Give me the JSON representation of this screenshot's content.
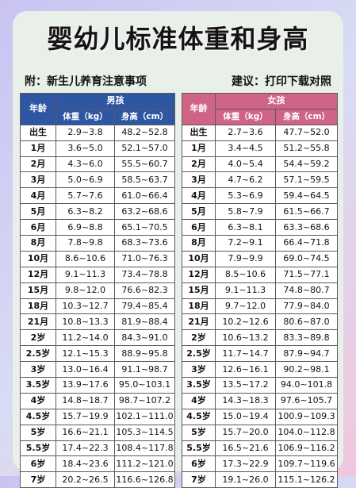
{
  "header": {
    "title": "婴幼儿标准体重和身高",
    "subtitle_left": "附：新生儿养育注意事项",
    "subtitle_right": "建议：打印下载对照"
  },
  "columns": {
    "age": "年龄",
    "weight": "体重（kg）",
    "height": "身高（cm）"
  },
  "boys": {
    "label": "男孩",
    "rows": [
      [
        "出生",
        "2.9~3.8",
        "48.2~52.8"
      ],
      [
        "1月",
        "3.6~5.0",
        "52.1~57.0"
      ],
      [
        "2月",
        "4.3~6.0",
        "55.5~60.7"
      ],
      [
        "3月",
        "5.0~6.9",
        "58.5~63.7"
      ],
      [
        "4月",
        "5.7~7.6",
        "61.0~66.4"
      ],
      [
        "5月",
        "6.3~8.2",
        "63.2~68.6"
      ],
      [
        "6月",
        "6.9~8.8",
        "65.1~70.5"
      ],
      [
        "8月",
        "7.8~9.8",
        "68.3~73.6"
      ],
      [
        "10月",
        "8.6~10.6",
        "71.0~76.3"
      ],
      [
        "12月",
        "9.1~11.3",
        "73.4~78.8"
      ],
      [
        "15月",
        "9.8~12.0",
        "76.6~82.3"
      ],
      [
        "18月",
        "10.3~12.7",
        "79.4~85.4"
      ],
      [
        "21月",
        "10.8~13.3",
        "81.9~88.4"
      ],
      [
        "2岁",
        "11.2~14.0",
        "84.3~91.0"
      ],
      [
        "2.5岁",
        "12.1~15.3",
        "88.9~95.8"
      ],
      [
        "3岁",
        "13.0~16.4",
        "91.1~98.7"
      ],
      [
        "3.5岁",
        "13.9~17.6",
        "95.0~103.1"
      ],
      [
        "4岁",
        "14.8~18.7",
        "98.7~107.2"
      ],
      [
        "4.5岁",
        "15.7~19.9",
        "102.1~111.0"
      ],
      [
        "5岁",
        "16.6~21.1",
        "105.3~114.5"
      ],
      [
        "5.5岁",
        "17.4~22.3",
        "108.4~117.8"
      ],
      [
        "6岁",
        "18.4~23.6",
        "111.2~121.0"
      ],
      [
        "7岁",
        "20.2~26.5",
        "116.6~126.8"
      ]
    ]
  },
  "girls": {
    "label": "女孩",
    "rows": [
      [
        "出生",
        "2.7~3.6",
        "47.7~52.0"
      ],
      [
        "1月",
        "3.4~4.5",
        "51.2~55.8"
      ],
      [
        "2月",
        "4.0~5.4",
        "54.4~59.2"
      ],
      [
        "3月",
        "4.7~6.2",
        "57.1~59.5"
      ],
      [
        "4月",
        "5.3~6.9",
        "59.4~64.5"
      ],
      [
        "5月",
        "5.8~7.9",
        "61.5~66.7"
      ],
      [
        "6月",
        "6.3~8.1",
        "63.3~68.6"
      ],
      [
        "8月",
        "7.2~9.1",
        "66.4~71.8"
      ],
      [
        "10月",
        "7.9~9.9",
        "69.0~74.5"
      ],
      [
        "12月",
        "8.5~10.6",
        "71.5~77.1"
      ],
      [
        "15月",
        "9.1~11.3",
        "74.8~80.7"
      ],
      [
        "18月",
        "9.7~12.0",
        "77.9~84.0"
      ],
      [
        "21月",
        "10.2~12.6",
        "80.6~87.0"
      ],
      [
        "2岁",
        "10.6~13.2",
        "83.3~89.8"
      ],
      [
        "2.5岁",
        "11.7~14.7",
        "87.9~94.7"
      ],
      [
        "3岁",
        "12.6~16.1",
        "90.2~98.1"
      ],
      [
        "3.5岁",
        "13.5~17.2",
        "94.0~101.8"
      ],
      [
        "4岁",
        "14.3~18.3",
        "97.6~105.7"
      ],
      [
        "4.5岁",
        "15.0~19.4",
        "100.9~109.3"
      ],
      [
        "5岁",
        "15.7~20.0",
        "104.0~112.8"
      ],
      [
        "5.5岁",
        "16.5~21.6",
        "106.9~116.2"
      ],
      [
        "6岁",
        "17.3~22.9",
        "109.7~119.6"
      ],
      [
        "7岁",
        "19.1~26.0",
        "115.1~126.2"
      ]
    ]
  }
}
